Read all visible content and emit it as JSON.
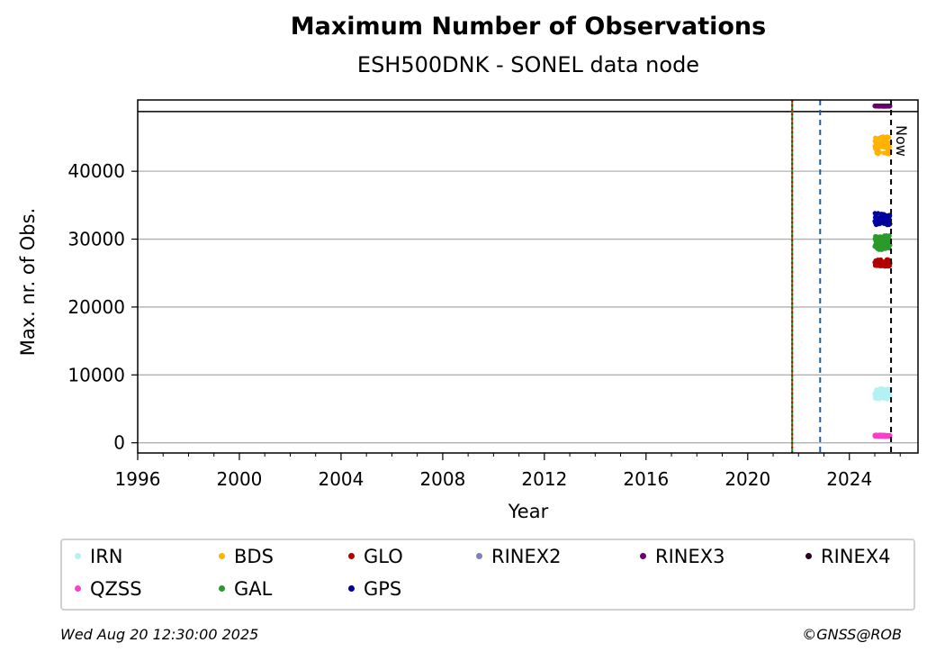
{
  "chart_data": {
    "type": "scatter",
    "title": "Maximum Number of Observations",
    "subtitle": "ESH500DNK - SONEL data node",
    "xlabel": "Year",
    "ylabel": "Max. nr. of Obs.",
    "xlim": [
      1996,
      2026.7
    ],
    "ylim": [
      -1500,
      50500
    ],
    "xticks": [
      1996,
      2000,
      2004,
      2008,
      2012,
      2016,
      2020,
      2024
    ],
    "yticks": [
      0,
      10000,
      20000,
      30000,
      40000
    ],
    "grid": "horizontal",
    "reference_hline": 48800,
    "vlines": [
      {
        "x": 2021.75,
        "color": "#228b22",
        "style": "solid"
      },
      {
        "x": 2021.75,
        "color": "#cc0000",
        "style": "dotted"
      },
      {
        "x": 2022.85,
        "color": "#1f5fa0",
        "style": "dashed"
      },
      {
        "x": 2025.64,
        "color": "#000000",
        "style": "dashed",
        "label": "Now"
      }
    ],
    "series": [
      {
        "name": "IRN",
        "color": "#b3f2f2",
        "x_range": [
          2025.0,
          2025.6
        ],
        "y_center": 7200,
        "y_spread": 800
      },
      {
        "name": "QZSS",
        "color": "#ff3fc8",
        "x_range": [
          2025.0,
          2025.6
        ],
        "y_center": 1050,
        "y_spread": 120
      },
      {
        "name": "BDS",
        "color": "#ffb300",
        "x_range": [
          2025.0,
          2025.6
        ],
        "y_center": 43800,
        "y_spread": 1300
      },
      {
        "name": "GAL",
        "color": "#2a9a2a",
        "x_range": [
          2025.0,
          2025.6
        ],
        "y_center": 29500,
        "y_spread": 1100
      },
      {
        "name": "GLO",
        "color": "#b30000",
        "x_range": [
          2025.0,
          2025.6
        ],
        "y_center": 26500,
        "y_spread": 500
      },
      {
        "name": "GPS",
        "color": "#0000a0",
        "x_range": [
          2025.0,
          2025.6
        ],
        "y_center": 33000,
        "y_spread": 900
      },
      {
        "name": "RINEX2",
        "color": "#8080c0",
        "x_range": null,
        "y_center": null,
        "y_spread": 0
      },
      {
        "name": "RINEX3",
        "color": "#6a006a",
        "x_range": [
          2025.0,
          2025.6
        ],
        "y_center": 49600,
        "y_spread": 30
      },
      {
        "name": "RINEX4",
        "color": "#2a0020",
        "x_range": null,
        "y_center": null,
        "y_spread": 0
      }
    ]
  },
  "legend": {
    "items": [
      {
        "label": "IRN",
        "color": "#b3f2f2"
      },
      {
        "label": "BDS",
        "color": "#ffb300"
      },
      {
        "label": "GLO",
        "color": "#b30000"
      },
      {
        "label": "RINEX2",
        "color": "#8080c0"
      },
      {
        "label": "RINEX3",
        "color": "#6a006a"
      },
      {
        "label": "RINEX4",
        "color": "#2a0020"
      },
      {
        "label": "QZSS",
        "color": "#ff3fc8"
      },
      {
        "label": "GAL",
        "color": "#2a9a2a"
      },
      {
        "label": "GPS",
        "color": "#0000a0"
      }
    ]
  },
  "footer": {
    "timestamp": "Wed Aug 20 12:30:00 2025",
    "credit": "©GNSS@ROB"
  }
}
